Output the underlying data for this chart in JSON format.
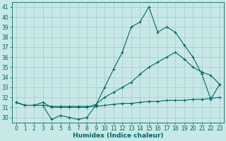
{
  "title": "",
  "xlabel": "Humidex (Indice chaleur)",
  "bg_color": "#c8e8e8",
  "grid_color": "#aacccc",
  "line_color": "#006666",
  "x": [
    0,
    1,
    2,
    3,
    4,
    5,
    6,
    7,
    8,
    9,
    10,
    11,
    12,
    13,
    14,
    15,
    16,
    17,
    18,
    19,
    20,
    21,
    22,
    23
  ],
  "line1": [
    31.5,
    31.2,
    31.2,
    31.2,
    29.8,
    30.2,
    30.0,
    29.8,
    30.0,
    31.2,
    33.0,
    34.8,
    36.5,
    39.0,
    39.5,
    41.0,
    38.5,
    39.0,
    38.5,
    37.2,
    36.0,
    34.3,
    31.8,
    33.3
  ],
  "line2": [
    31.5,
    31.2,
    31.2,
    31.5,
    31.0,
    31.0,
    31.0,
    31.0,
    31.0,
    31.3,
    32.0,
    32.5,
    33.0,
    33.5,
    34.3,
    35.0,
    35.5,
    36.0,
    36.5,
    35.8,
    35.0,
    34.5,
    34.2,
    33.3
  ],
  "line3": [
    31.5,
    31.2,
    31.2,
    31.2,
    31.1,
    31.1,
    31.1,
    31.1,
    31.1,
    31.1,
    31.2,
    31.3,
    31.4,
    31.4,
    31.5,
    31.6,
    31.6,
    31.7,
    31.7,
    31.7,
    31.8,
    31.8,
    31.9,
    32.0
  ],
  "xlim": [
    -0.5,
    23.5
  ],
  "ylim": [
    29.5,
    41.5
  ],
  "yticks": [
    30,
    31,
    32,
    33,
    34,
    35,
    36,
    37,
    38,
    39,
    40,
    41
  ],
  "xticks": [
    0,
    1,
    2,
    3,
    4,
    5,
    6,
    7,
    8,
    9,
    10,
    11,
    12,
    13,
    14,
    15,
    16,
    17,
    18,
    19,
    20,
    21,
    22,
    23
  ],
  "markersize": 2.0,
  "linewidth": 0.8,
  "fontsize_label": 6.5,
  "fontsize_tick": 5.5
}
